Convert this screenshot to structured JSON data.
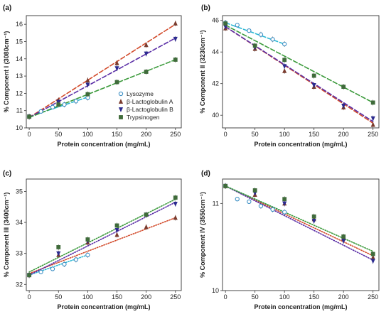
{
  "legend": {
    "entries": [
      {
        "name": "Lysozyme",
        "marker": "circle",
        "marker_fill": "#ffffff",
        "marker_stroke": "#3b8ec4",
        "line": "#2bb7d3"
      },
      {
        "name": "β-Lactoglobulin A",
        "marker": "triangle-up",
        "marker_fill": "#7a3b2e",
        "marker_stroke": "#7a3b2e",
        "line": "#d24a2a"
      },
      {
        "name": "β-Lactoglobulin B",
        "marker": "triangle-down",
        "marker_fill": "#2b2a8f",
        "marker_stroke": "#2b2a8f",
        "line": "#5a2ea6"
      },
      {
        "name": "Trypsinogen",
        "marker": "square",
        "marker_fill": "#3f6b3a",
        "marker_stroke": "#3f6b3a",
        "line": "#3b9a3b"
      }
    ]
  },
  "chart_data": [
    {
      "panel": "(a)",
      "type": "scatter",
      "xlabel": "Protein concentration (mg/mL)",
      "ylabel": "% Component I (3080cm⁻¹)",
      "xlim": [
        -5,
        260
      ],
      "ylim": [
        10,
        16.5
      ],
      "xticks": [
        0,
        50,
        100,
        150,
        200,
        250
      ],
      "yticks": [
        10,
        11,
        12,
        13,
        14,
        15,
        16
      ],
      "fit_style": "dashed",
      "series": [
        {
          "name": "Lysozyme",
          "x": [
            0,
            20,
            40,
            60,
            80,
            100
          ],
          "y": [
            10.65,
            10.95,
            11.2,
            11.35,
            11.55,
            11.75
          ],
          "fit": [
            10.65,
            11.78
          ]
        },
        {
          "name": "β-Lactoglobulin A",
          "x": [
            0,
            50,
            100,
            150,
            200,
            250
          ],
          "y": [
            10.65,
            11.6,
            12.75,
            13.75,
            14.8,
            16.05
          ],
          "fit": [
            10.6,
            16.0
          ]
        },
        {
          "name": "β-Lactoglobulin B",
          "x": [
            0,
            50,
            100,
            150,
            200,
            250
          ],
          "y": [
            10.65,
            11.5,
            12.5,
            13.45,
            14.3,
            15.15
          ],
          "fit": [
            10.6,
            15.2
          ]
        },
        {
          "name": "Trypsinogen",
          "x": [
            0,
            50,
            100,
            150,
            200,
            250
          ],
          "y": [
            10.65,
            11.35,
            11.95,
            12.65,
            13.25,
            13.95
          ],
          "fit": [
            10.6,
            13.95
          ]
        }
      ]
    },
    {
      "panel": "(b)",
      "type": "scatter",
      "xlabel": "Protein concentration (mg/mL)",
      "ylabel": "% Component II (3230cm⁻¹)",
      "xlim": [
        -5,
        260
      ],
      "ylim": [
        39.2,
        46.3
      ],
      "xticks": [
        0,
        50,
        100,
        150,
        200,
        250
      ],
      "yticks": [
        40,
        42,
        44,
        46
      ],
      "fit_style": "dashed",
      "series": [
        {
          "name": "Lysozyme",
          "x": [
            0,
            20,
            40,
            60,
            80,
            100
          ],
          "y": [
            45.85,
            45.7,
            45.35,
            45.1,
            44.8,
            44.5
          ],
          "fit": [
            45.85,
            44.5
          ]
        },
        {
          "name": "β-Lactoglobulin A",
          "x": [
            0,
            50,
            100,
            150,
            200,
            250
          ],
          "y": [
            45.5,
            44.2,
            42.8,
            41.8,
            40.5,
            39.4
          ],
          "fit": [
            45.6,
            39.5
          ]
        },
        {
          "name": "β-Lactoglobulin B",
          "x": [
            0,
            50,
            100,
            150,
            200,
            250
          ],
          "y": [
            45.6,
            44.3,
            43.1,
            41.9,
            40.6,
            39.8
          ],
          "fit": [
            45.6,
            39.6
          ]
        },
        {
          "name": "Trypsinogen",
          "x": [
            0,
            50,
            100,
            150,
            200,
            250
          ],
          "y": [
            45.8,
            44.4,
            43.5,
            42.5,
            41.8,
            40.8
          ],
          "fit": [
            45.7,
            40.8
          ]
        }
      ]
    },
    {
      "panel": "(c)",
      "type": "scatter",
      "xlabel": "Protein concentration (mg/mL)",
      "ylabel": "% Component III (3400cm⁻¹)",
      "xlim": [
        -5,
        260
      ],
      "ylim": [
        31.8,
        35.4
      ],
      "xticks": [
        0,
        50,
        100,
        150,
        200,
        250
      ],
      "yticks": [
        32,
        33,
        34,
        35
      ],
      "fit_style": "dotted",
      "series": [
        {
          "name": "Lysozyme",
          "x": [
            0,
            20,
            40,
            60,
            80,
            100
          ],
          "y": [
            32.3,
            32.4,
            32.5,
            32.65,
            32.8,
            32.95
          ],
          "fit": [
            32.3,
            32.95
          ]
        },
        {
          "name": "β-Lactoglobulin A",
          "x": [
            0,
            50,
            100,
            150,
            200,
            250
          ],
          "y": [
            32.3,
            32.95,
            33.35,
            33.6,
            33.85,
            34.15
          ],
          "fit": [
            32.35,
            34.15
          ]
        },
        {
          "name": "β-Lactoglobulin B",
          "x": [
            0,
            50,
            100,
            150,
            200,
            250
          ],
          "y": [
            32.3,
            33.0,
            33.4,
            33.75,
            34.25,
            34.6
          ],
          "fit": [
            32.3,
            34.65
          ]
        },
        {
          "name": "Trypsinogen",
          "x": [
            0,
            50,
            100,
            150,
            200,
            250
          ],
          "y": [
            32.3,
            33.2,
            33.45,
            33.9,
            34.25,
            34.8
          ],
          "fit": [
            32.4,
            34.75
          ]
        }
      ]
    },
    {
      "panel": "(d)",
      "type": "scatter",
      "xlabel": "Protein concentration (mg/mL)",
      "ylabel": "% Component IV (3550cm⁻¹)",
      "xlim": [
        -5,
        260
      ],
      "ylim": [
        10,
        11.28
      ],
      "xticks": [
        0,
        50,
        100,
        150,
        200,
        250
      ],
      "yticks": [
        10,
        11
      ],
      "fit_style": "dotted",
      "series": [
        {
          "name": "Lysozyme",
          "x": [
            0,
            20,
            40,
            60,
            80,
            100
          ],
          "y": [
            11.2,
            11.05,
            11.02,
            10.97,
            10.93,
            10.9
          ],
          "fit": [
            11.2,
            10.9
          ]
        },
        {
          "name": "β-Lactoglobulin A",
          "x": [
            0,
            50,
            100,
            150,
            200,
            250
          ],
          "y": [
            11.2,
            11.1,
            11.0,
            10.82,
            10.6,
            10.38
          ],
          "fit": [
            11.2,
            10.4
          ]
        },
        {
          "name": "β-Lactoglobulin B",
          "x": [
            0,
            50,
            100,
            150,
            200,
            250
          ],
          "y": [
            11.2,
            11.12,
            11.0,
            10.8,
            10.57,
            10.34
          ],
          "fit": [
            11.2,
            10.35
          ]
        },
        {
          "name": "Trypsinogen",
          "x": [
            0,
            50,
            100,
            150,
            200,
            250
          ],
          "y": [
            11.2,
            11.15,
            11.05,
            10.85,
            10.62,
            10.42
          ],
          "fit": [
            11.2,
            10.45
          ]
        }
      ]
    }
  ]
}
